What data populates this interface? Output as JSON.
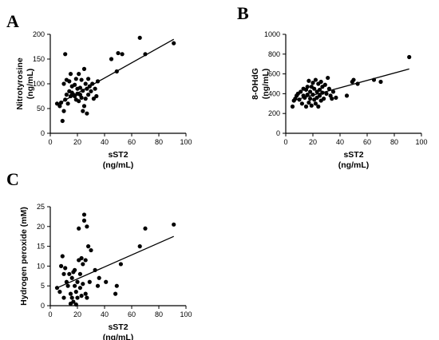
{
  "chart_data": [
    {
      "type": "scatter",
      "panel": "A",
      "xlabel": [
        "sST2",
        "(ng/mL)"
      ],
      "ylabel": [
        "Nitrotyrosine",
        "(ng/mL)"
      ],
      "xlim": [
        0,
        100
      ],
      "ylim": [
        0,
        200
      ],
      "xticks": [
        0,
        20,
        40,
        60,
        80,
        100
      ],
      "yticks": [
        0,
        50,
        100,
        150,
        200
      ],
      "trendline": [
        [
          5,
          58
        ],
        [
          91,
          190
        ]
      ],
      "points": [
        [
          5,
          60
        ],
        [
          7,
          55
        ],
        [
          8,
          62
        ],
        [
          9,
          25
        ],
        [
          10,
          45
        ],
        [
          10,
          100
        ],
        [
          11,
          160
        ],
        [
          11,
          68
        ],
        [
          12,
          78
        ],
        [
          12,
          108
        ],
        [
          13,
          60
        ],
        [
          14,
          105
        ],
        [
          14,
          85
        ],
        [
          15,
          75
        ],
        [
          15,
          120
        ],
        [
          16,
          82
        ],
        [
          16,
          95
        ],
        [
          17,
          78
        ],
        [
          18,
          98
        ],
        [
          18,
          75
        ],
        [
          19,
          68
        ],
        [
          19,
          110
        ],
        [
          20,
          90
        ],
        [
          20,
          80
        ],
        [
          21,
          120
        ],
        [
          21,
          65
        ],
        [
          22,
          78
        ],
        [
          22,
          92
        ],
        [
          23,
          108
        ],
        [
          23,
          72
        ],
        [
          24,
          86
        ],
        [
          24,
          45
        ],
        [
          25,
          130
        ],
        [
          25,
          55
        ],
        [
          26,
          100
        ],
        [
          26,
          70
        ],
        [
          27,
          90
        ],
        [
          27,
          40
        ],
        [
          28,
          110
        ],
        [
          28,
          78
        ],
        [
          29,
          95
        ],
        [
          30,
          85
        ],
        [
          31,
          100
        ],
        [
          32,
          70
        ],
        [
          33,
          90
        ],
        [
          34,
          75
        ],
        [
          35,
          105
        ],
        [
          45,
          150
        ],
        [
          49,
          125
        ],
        [
          50,
          162
        ],
        [
          53,
          160
        ],
        [
          66,
          193
        ],
        [
          70,
          160
        ],
        [
          91,
          182
        ]
      ]
    },
    {
      "type": "scatter",
      "panel": "B",
      "xlabel": [
        "sST2",
        "(ng/mL)"
      ],
      "ylabel": [
        "8-OHdG",
        "(ng/mL)"
      ],
      "xlim": [
        0,
        100
      ],
      "ylim": [
        0,
        1000
      ],
      "xticks": [
        0,
        20,
        40,
        60,
        80,
        100
      ],
      "yticks": [
        0,
        200,
        400,
        600,
        800,
        1000
      ],
      "trendline": [
        [
          5,
          330
        ],
        [
          91,
          650
        ]
      ],
      "points": [
        [
          5,
          270
        ],
        [
          6,
          330
        ],
        [
          7,
          350
        ],
        [
          8,
          380
        ],
        [
          9,
          400
        ],
        [
          10,
          340
        ],
        [
          11,
          420
        ],
        [
          12,
          300
        ],
        [
          13,
          380
        ],
        [
          13,
          450
        ],
        [
          14,
          360
        ],
        [
          15,
          440
        ],
        [
          15,
          270
        ],
        [
          16,
          390
        ],
        [
          16,
          470
        ],
        [
          17,
          310
        ],
        [
          17,
          530
        ],
        [
          18,
          420
        ],
        [
          18,
          350
        ],
        [
          19,
          470
        ],
        [
          19,
          280
        ],
        [
          20,
          390
        ],
        [
          20,
          510
        ],
        [
          21,
          340
        ],
        [
          21,
          450
        ],
        [
          22,
          300
        ],
        [
          22,
          540
        ],
        [
          23,
          420
        ],
        [
          23,
          360
        ],
        [
          24,
          500
        ],
        [
          24,
          270
        ],
        [
          25,
          440
        ],
        [
          25,
          380
        ],
        [
          26,
          520
        ],
        [
          26,
          330
        ],
        [
          27,
          410
        ],
        [
          27,
          470
        ],
        [
          28,
          350
        ],
        [
          29,
          490
        ],
        [
          30,
          400
        ],
        [
          31,
          560
        ],
        [
          32,
          450
        ],
        [
          33,
          380
        ],
        [
          34,
          350
        ],
        [
          35,
          420
        ],
        [
          37,
          360
        ],
        [
          45,
          380
        ],
        [
          49,
          520
        ],
        [
          50,
          540
        ],
        [
          53,
          500
        ],
        [
          65,
          540
        ],
        [
          70,
          520
        ],
        [
          91,
          770
        ]
      ]
    },
    {
      "type": "scatter",
      "panel": "C",
      "xlabel": [
        "sST2",
        "(ng/mL)"
      ],
      "ylabel": [
        "Hydrogen peroxide (mM)"
      ],
      "xlim": [
        0,
        100
      ],
      "ylim": [
        0,
        25
      ],
      "xticks": [
        0,
        20,
        40,
        60,
        80,
        100
      ],
      "yticks": [
        0,
        5,
        10,
        15,
        20,
        25
      ],
      "trendline": [
        [
          5,
          4.5
        ],
        [
          91,
          17.5
        ]
      ],
      "points": [
        [
          5,
          4.5
        ],
        [
          7,
          3.5
        ],
        [
          8,
          10
        ],
        [
          9,
          12.5
        ],
        [
          10,
          8
        ],
        [
          10,
          2
        ],
        [
          11,
          9.5
        ],
        [
          12,
          6
        ],
        [
          13,
          5
        ],
        [
          14,
          8
        ],
        [
          15,
          3
        ],
        [
          15,
          0.5
        ],
        [
          16,
          7
        ],
        [
          16,
          2
        ],
        [
          17,
          8.5
        ],
        [
          17,
          1
        ],
        [
          18,
          5
        ],
        [
          18,
          9
        ],
        [
          19,
          3.5
        ],
        [
          19,
          0.3
        ],
        [
          20,
          6
        ],
        [
          20,
          2
        ],
        [
          21,
          19.5
        ],
        [
          21,
          11.5
        ],
        [
          22,
          4.5
        ],
        [
          22,
          8
        ],
        [
          23,
          2.5
        ],
        [
          23,
          12
        ],
        [
          24,
          5.5
        ],
        [
          24,
          10.5
        ],
        [
          25,
          23
        ],
        [
          25,
          21.5
        ],
        [
          26,
          11.5
        ],
        [
          26,
          3
        ],
        [
          27,
          20
        ],
        [
          27,
          2
        ],
        [
          28,
          15
        ],
        [
          29,
          6
        ],
        [
          30,
          14
        ],
        [
          33,
          9
        ],
        [
          35,
          5
        ],
        [
          36,
          7
        ],
        [
          41,
          6
        ],
        [
          48,
          3
        ],
        [
          49,
          5
        ],
        [
          52,
          10.5
        ],
        [
          66,
          15
        ],
        [
          70,
          19.5
        ],
        [
          91,
          20.5
        ]
      ]
    }
  ]
}
